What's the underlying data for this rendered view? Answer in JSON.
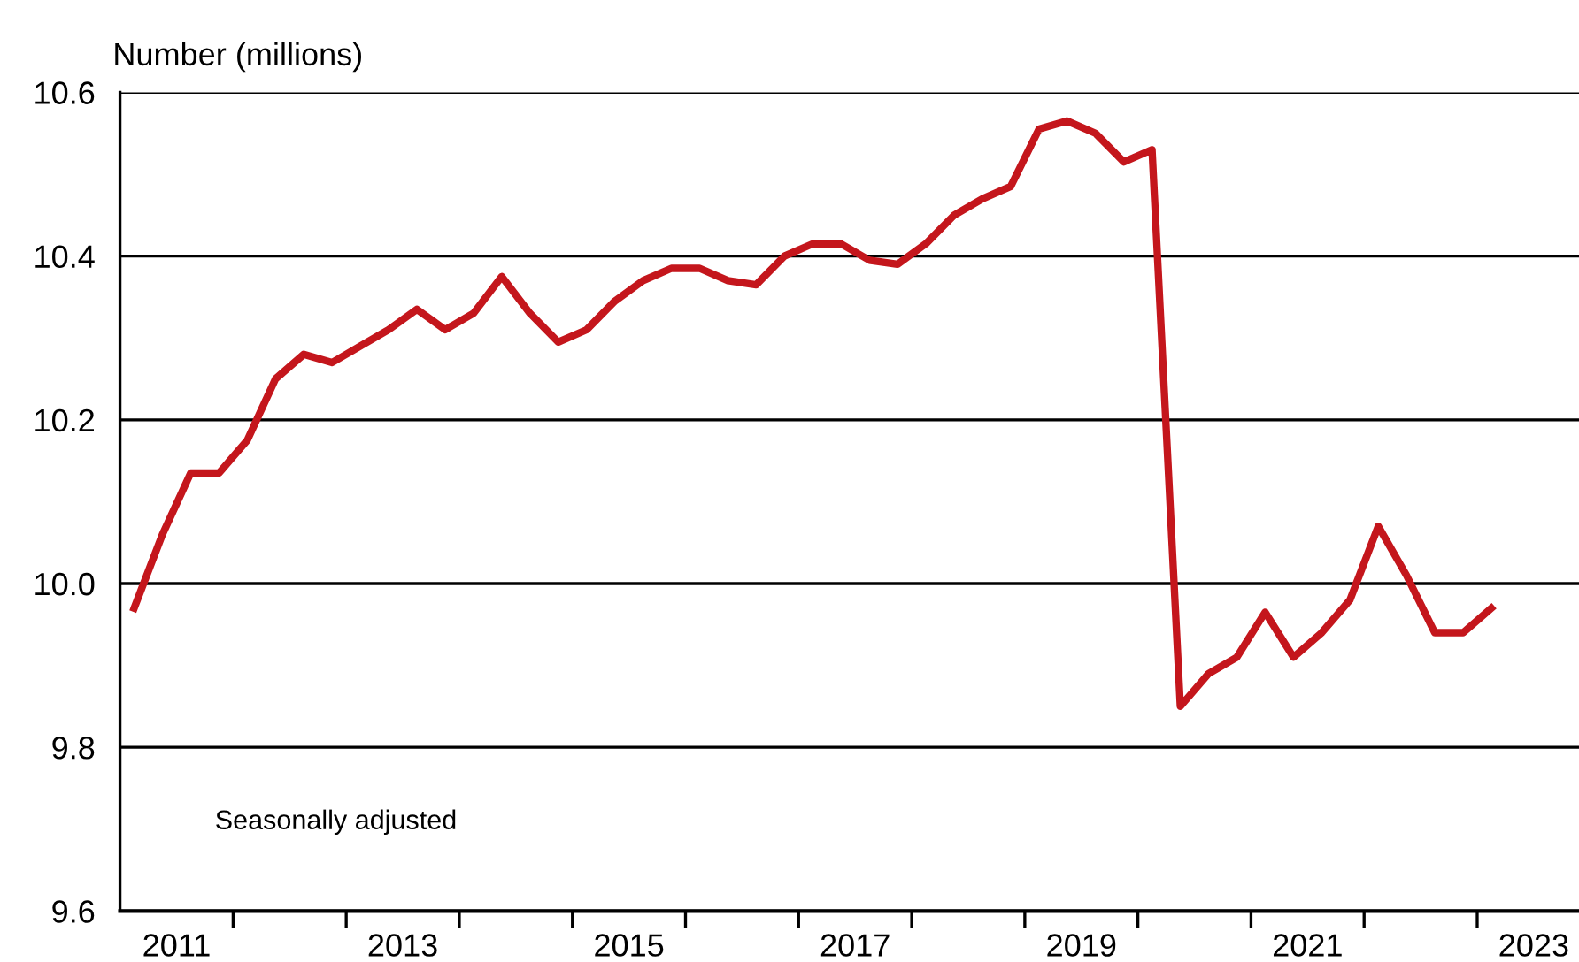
{
  "chart_data": {
    "type": "line",
    "ylabel": "Number (millions)",
    "annotations": [
      "Seasonally adjusted"
    ],
    "x": [
      2011.125,
      2011.375,
      2011.625,
      2011.875,
      2012.125,
      2012.375,
      2012.625,
      2012.875,
      2013.125,
      2013.375,
      2013.625,
      2013.875,
      2014.125,
      2014.375,
      2014.625,
      2014.875,
      2015.125,
      2015.375,
      2015.625,
      2015.875,
      2016.125,
      2016.375,
      2016.625,
      2016.875,
      2017.125,
      2017.375,
      2017.625,
      2017.875,
      2018.125,
      2018.375,
      2018.625,
      2018.875,
      2019.125,
      2019.375,
      2019.625,
      2019.875,
      2020.125,
      2020.375,
      2020.625,
      2020.875,
      2021.125,
      2021.375,
      2021.625,
      2021.875,
      2022.125,
      2022.375,
      2022.625,
      2022.875,
      2023.125
    ],
    "series": [
      {
        "color": "#c4161c",
        "values": [
          9.97,
          10.06,
          10.135,
          10.135,
          10.175,
          10.25,
          10.28,
          10.27,
          10.29,
          10.31,
          10.335,
          10.31,
          10.33,
          10.375,
          10.33,
          10.295,
          10.31,
          10.345,
          10.37,
          10.385,
          10.385,
          10.37,
          10.365,
          10.4,
          10.415,
          10.415,
          10.395,
          10.39,
          10.415,
          10.45,
          10.47,
          10.485,
          10.555,
          10.565,
          10.55,
          10.515,
          10.53,
          9.85,
          9.89,
          9.91,
          9.965,
          9.91,
          9.94,
          9.98,
          10.07,
          10.01,
          9.94,
          9.94,
          9.97
        ]
      }
    ],
    "xlim": [
      2011.0,
      2023.9
    ],
    "xticks": [
      {
        "value": 2011.5,
        "label": "2011"
      },
      {
        "value": 2013.5,
        "label": "2013"
      },
      {
        "value": 2015.5,
        "label": "2015"
      },
      {
        "value": 2017.5,
        "label": "2017"
      },
      {
        "value": 2019.5,
        "label": "2019"
      },
      {
        "value": 2021.5,
        "label": "2021"
      },
      {
        "value": 2023.5,
        "label": "2023"
      },
      {
        "value": 2012,
        "label": null
      },
      {
        "value": 2013,
        "label": null
      },
      {
        "value": 2014,
        "label": null
      },
      {
        "value": 2015,
        "label": null
      },
      {
        "value": 2016,
        "label": null
      },
      {
        "value": 2017,
        "label": null
      },
      {
        "value": 2018,
        "label": null
      },
      {
        "value": 2019,
        "label": null
      },
      {
        "value": 2020,
        "label": null
      },
      {
        "value": 2021,
        "label": null
      },
      {
        "value": 2022,
        "label": null
      },
      {
        "value": 2023,
        "label": null
      }
    ],
    "ylim": [
      9.6,
      10.6
    ],
    "yticks": [
      {
        "value": 9.6,
        "label": "9.6"
      },
      {
        "value": 9.8,
        "label": "9.8"
      },
      {
        "value": 10.0,
        "label": "10.0"
      },
      {
        "value": 10.2,
        "label": "10.2"
      },
      {
        "value": 10.4,
        "label": "10.4"
      },
      {
        "value": 10.6,
        "label": "10.6"
      }
    ],
    "grid": "y",
    "legend": false,
    "marker": "none",
    "line_style": "solid"
  }
}
